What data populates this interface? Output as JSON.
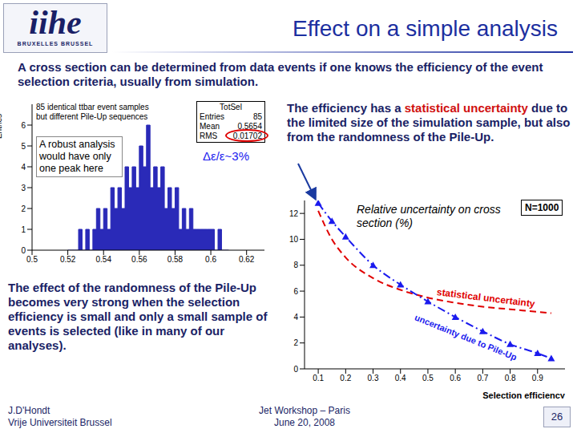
{
  "header": {
    "logo": "iihe",
    "logo_subtitle": "BRUXELLES BRUSSEL",
    "title": "Effect on a simple analysis"
  },
  "texts": {
    "intro": "A cross section can be determined from data events if one knows the efficiency of the event selection criteria, usually from simulation.",
    "efficiency_note": {
      "before": "The efficiency has a ",
      "highlight": "statistical uncertainty",
      "after": " due to the limited size of the simulation sample, but also from the randomness of the Pile-Up."
    },
    "conclusion": "The effect of the randomness of the Pile-Up becomes very strong when the selection efficiency is small and only a small sample of events is selected (like in many of our analyses)."
  },
  "footer": {
    "author": "J.D'Hondt",
    "institute": "Vrije Universiteit Brussel",
    "event": "Jet Workshop – Paris",
    "date": "June 20, 2008",
    "page": 26
  },
  "chart_data": [
    {
      "type": "histogram",
      "y_label": "Entries",
      "annotation": [
        "85 identical ttbar event samples",
        "but different Pile-Up sequences"
      ],
      "stats_title": "TotSel",
      "stats": [
        {
          "label": "Entries",
          "value": 85
        },
        {
          "label": "Mean",
          "value": 0.5654
        },
        {
          "label": "RMS",
          "value": 0.01702
        }
      ],
      "note": "A robust analysis would have only one peak here",
      "result": "Δε/ε~3%",
      "bins": [
        0.52,
        0.522,
        0.524,
        0.526,
        0.528,
        0.53,
        0.532,
        0.534,
        0.536,
        0.538,
        0.54,
        0.542,
        0.544,
        0.546,
        0.548,
        0.55,
        0.552,
        0.554,
        0.556,
        0.558,
        0.56,
        0.562,
        0.564,
        0.566,
        0.568,
        0.57,
        0.572,
        0.574,
        0.576,
        0.578,
        0.58,
        0.582,
        0.584,
        0.586,
        0.588,
        0.59,
        0.592,
        0.594,
        0.596,
        0.598,
        0.6,
        0.602,
        0.604,
        0.606,
        0.608,
        0.61
      ],
      "counts": [
        0,
        0,
        0,
        1,
        0,
        1,
        0,
        1,
        2,
        1,
        2,
        1,
        3,
        2,
        3,
        2,
        4,
        3,
        4,
        3,
        5,
        4,
        6,
        3,
        4,
        3,
        4,
        2,
        3,
        2,
        3,
        1,
        2,
        1,
        2,
        1,
        1,
        1,
        1,
        1,
        1,
        0,
        1,
        0,
        0
      ],
      "color": "#2a2ab8",
      "xlim": [
        0.5,
        0.63
      ],
      "xticks": [
        0.5,
        0.52,
        0.54,
        0.56,
        0.58,
        0.6,
        0.62
      ],
      "ylim": [
        0,
        7
      ],
      "yticks": [
        0,
        1,
        2,
        3,
        4,
        5,
        6
      ]
    },
    {
      "type": "line",
      "title": "Relative uncertainty on cross section (%)",
      "x_label": "Selection efficiency",
      "annotation": "N=1000",
      "x": [
        0.1,
        0.15,
        0.2,
        0.3,
        0.4,
        0.5,
        0.6,
        0.7,
        0.8,
        0.9,
        0.95
      ],
      "series": [
        {
          "name": "statistical uncertainty",
          "color": "#e00000",
          "line_style": "dashed",
          "values": [
            12.2,
            10.0,
            8.6,
            7.0,
            6.1,
            5.5,
            5.1,
            4.8,
            4.6,
            4.4,
            4.3
          ]
        },
        {
          "name": "uncertainty due to Pile-Up",
          "color": "#1a1aee",
          "line_style": "dashdot",
          "marker": "triangle",
          "values": [
            12.8,
            11.4,
            10.2,
            8.0,
            6.5,
            5.2,
            4.0,
            2.9,
            1.9,
            1.2,
            0.8
          ]
        }
      ],
      "xlim": [
        0.05,
        1.0
      ],
      "xticks": [
        0.1,
        0.2,
        0.3,
        0.4,
        0.5,
        0.6,
        0.7,
        0.8,
        0.9
      ],
      "ylim": [
        0,
        13
      ],
      "yticks": [
        0,
        2,
        4,
        6,
        8,
        10,
        12
      ]
    }
  ]
}
